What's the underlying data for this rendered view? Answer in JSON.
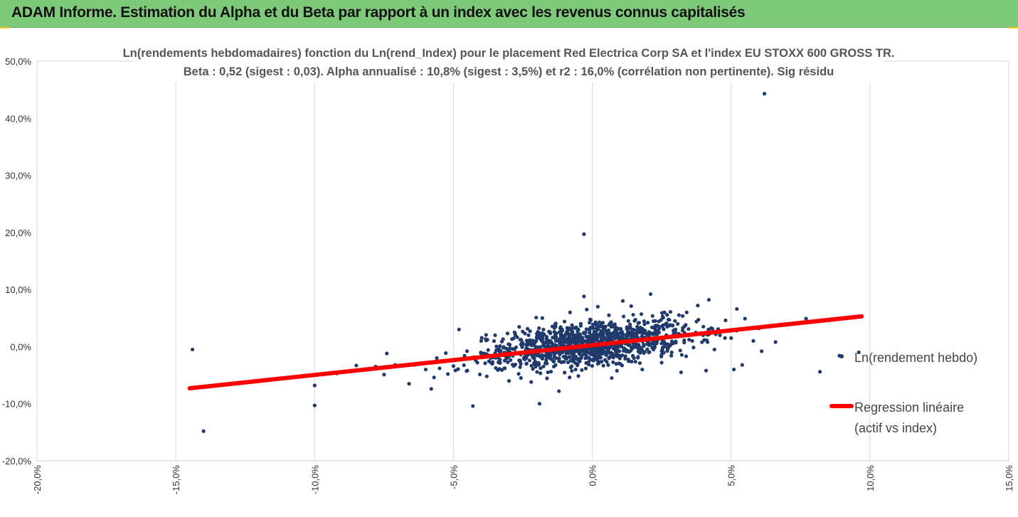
{
  "header": {
    "title": "ADAM Informe. Estimation du Alpha et du Beta par rapport à un index avec les revenus connus capitalisés"
  },
  "chart_data": {
    "type": "scatter",
    "title": "Ln(rendements hebdomadaires) fonction du Ln(rend_Index) pour le placement Red Electrica Corp SA et l'index EU STOXX 600 GROSS TR.",
    "subtitle": "Beta : 0,52 (sigest : 0,03). Alpha annualisé : 10,8% (sigest : 3,5%) et r2 : 16,0% (corrélation non pertinente). Sig résidu",
    "xlim": [
      -0.2,
      0.15
    ],
    "ylim": [
      -0.2,
      0.5
    ],
    "x_ticks": [
      "-20,0%",
      "-15,0%",
      "-10,0%",
      "-5,0%",
      "0,0%",
      "5,0%",
      "10,0%",
      "15,0%"
    ],
    "y_ticks": [
      "-20,0%",
      "-10,0%",
      "0,0%",
      "10,0%",
      "20,0%",
      "30,0%",
      "40,0%",
      "50,0%"
    ],
    "grid": "vertical",
    "legend_position": "right",
    "colors": {
      "scatter": "#1f3a6b",
      "regression": "#ff0000",
      "header_bg": "#7fc97a",
      "corner_accent": "#f4c20d"
    },
    "series": [
      {
        "name": "Ln(rendement hebdo)",
        "kind": "scatter",
        "points": [
          [
            -0.144,
            -0.005
          ],
          [
            -0.14,
            -0.148
          ],
          [
            -0.1,
            -0.103
          ],
          [
            -0.1,
            -0.068
          ],
          [
            -0.092,
            -0.047
          ],
          [
            -0.085,
            -0.033
          ],
          [
            -0.078,
            -0.035
          ],
          [
            -0.075,
            -0.049
          ],
          [
            -0.074,
            -0.012
          ],
          [
            -0.071,
            -0.032
          ],
          [
            -0.066,
            -0.065
          ],
          [
            -0.064,
            -0.032
          ],
          [
            -0.06,
            -0.04
          ],
          [
            -0.058,
            -0.074
          ],
          [
            -0.057,
            -0.054
          ],
          [
            -0.056,
            -0.02
          ],
          [
            -0.055,
            -0.038
          ],
          [
            -0.052,
            -0.048
          ],
          [
            -0.05,
            -0.034
          ],
          [
            -0.048,
            0.03
          ],
          [
            -0.046,
            -0.016
          ],
          [
            -0.045,
            -0.042
          ],
          [
            -0.043,
            -0.104
          ],
          [
            -0.042,
            -0.024
          ],
          [
            -0.04,
            -0.012
          ],
          [
            -0.04,
            0.01
          ],
          [
            -0.038,
            -0.052
          ],
          [
            -0.036,
            -0.03
          ],
          [
            -0.035,
            0.02
          ],
          [
            -0.034,
            -0.041
          ],
          [
            -0.032,
            -0.002
          ],
          [
            -0.03,
            -0.06
          ],
          [
            -0.028,
            0.025
          ],
          [
            -0.026,
            -0.036
          ],
          [
            -0.024,
            -0.014
          ],
          [
            -0.022,
            -0.062
          ],
          [
            -0.02,
            0.015
          ],
          [
            -0.019,
            -0.1
          ],
          [
            -0.018,
            0.05
          ],
          [
            -0.016,
            -0.045
          ],
          [
            -0.015,
            -0.01
          ],
          [
            -0.014,
            -0.026
          ],
          [
            -0.012,
            -0.078
          ],
          [
            -0.01,
            0.044
          ],
          [
            -0.01,
            0.008
          ],
          [
            -0.008,
            0.06
          ],
          [
            -0.006,
            -0.04
          ],
          [
            -0.005,
            0.03
          ],
          [
            -0.004,
            -0.02
          ],
          [
            -0.003,
            0.197
          ],
          [
            -0.003,
            0.088
          ],
          [
            -0.002,
            0.065
          ],
          [
            -0.001,
            0.042
          ],
          [
            0.0,
            -0.005
          ],
          [
            0.001,
            0.022
          ],
          [
            0.002,
            -0.03
          ],
          [
            0.002,
            0.07
          ],
          [
            0.003,
            0.01
          ],
          [
            0.004,
            0.035
          ],
          [
            0.005,
            -0.015
          ],
          [
            0.006,
            0.055
          ],
          [
            0.007,
            -0.055
          ],
          [
            0.008,
            0.018
          ],
          [
            0.009,
            0.03
          ],
          [
            0.01,
            -0.03
          ],
          [
            0.011,
            0.08
          ],
          [
            0.012,
            0.005
          ],
          [
            0.013,
            0.045
          ],
          [
            0.014,
            0.071
          ],
          [
            0.015,
            -0.02
          ],
          [
            0.017,
            0.025
          ],
          [
            0.018,
            -0.04
          ],
          [
            0.02,
            0.042
          ],
          [
            0.021,
            0.092
          ],
          [
            0.022,
            0.01
          ],
          [
            0.024,
            0.035
          ],
          [
            0.025,
            -0.028
          ],
          [
            0.026,
            0.06
          ],
          [
            0.028,
            0.002
          ],
          [
            0.03,
            0.03
          ],
          [
            0.032,
            -0.045
          ],
          [
            0.034,
            0.06
          ],
          [
            0.036,
            0.01
          ],
          [
            0.038,
            0.072
          ],
          [
            0.04,
            0.035
          ],
          [
            0.041,
            -0.042
          ],
          [
            0.042,
            0.082
          ],
          [
            0.044,
            -0.005
          ],
          [
            0.046,
            0.02
          ],
          [
            0.048,
            0.046
          ],
          [
            0.05,
            0.015
          ],
          [
            0.051,
            -0.04
          ],
          [
            0.052,
            0.028
          ],
          [
            0.054,
            -0.032
          ],
          [
            0.055,
            0.049
          ],
          [
            0.058,
            0.01
          ],
          [
            0.06,
            0.032
          ],
          [
            0.061,
            -0.008
          ],
          [
            0.062,
            0.443
          ],
          [
            0.066,
            0.008
          ],
          [
            0.07,
            0.038
          ],
          [
            0.077,
            0.049
          ],
          [
            0.082,
            -0.044
          ],
          [
            0.089,
            -0.016
          ],
          [
            0.094,
            0.052
          ],
          [
            0.096,
            -0.01
          ]
        ]
      },
      {
        "name": "Regression linéaire\n(actif vs index)",
        "kind": "line",
        "points": [
          [
            -0.145,
            -0.073
          ],
          [
            0.097,
            0.053
          ]
        ]
      }
    ]
  }
}
